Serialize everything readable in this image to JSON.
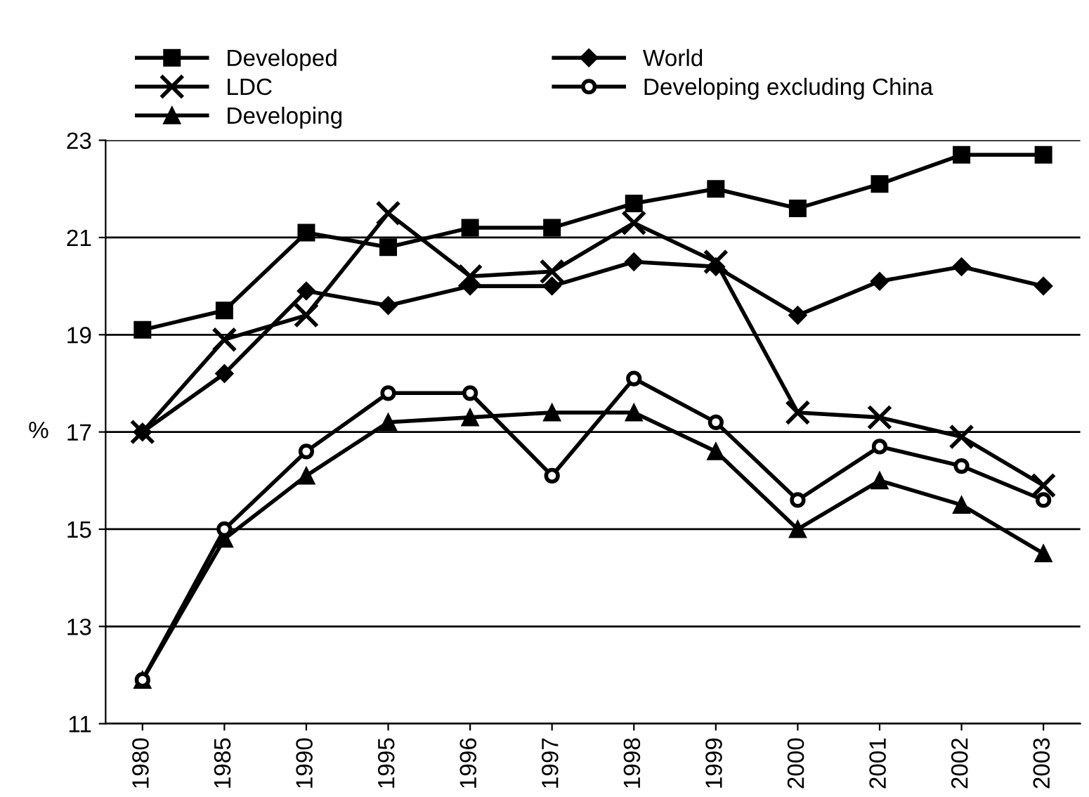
{
  "chart_data": {
    "type": "line",
    "ylabel": "%",
    "categories": [
      "1980",
      "1985",
      "1990",
      "1995",
      "1996",
      "1997",
      "1998",
      "1999",
      "2000",
      "2001",
      "2002",
      "2003"
    ],
    "series": [
      {
        "name": "Developed",
        "color": "#000000",
        "marker": "square",
        "values": [
          19.1,
          19.5,
          21.1,
          20.8,
          21.2,
          21.2,
          21.7,
          22.0,
          21.6,
          22.1,
          22.7,
          22.7
        ]
      },
      {
        "name": "LDC",
        "color": "#000000",
        "marker": "cross",
        "values": [
          17.0,
          18.9,
          19.4,
          21.5,
          20.2,
          20.3,
          21.3,
          20.5,
          17.4,
          17.3,
          16.9,
          15.9
        ]
      },
      {
        "name": "Developing",
        "color": "#000000",
        "marker": "triangle",
        "values": [
          11.9,
          14.8,
          16.1,
          17.2,
          17.3,
          17.4,
          17.4,
          16.6,
          15.0,
          16.0,
          15.5,
          14.5
        ]
      },
      {
        "name": "World",
        "color": "#000000",
        "marker": "diamond",
        "values": [
          17.0,
          18.2,
          19.9,
          19.6,
          20.0,
          20.0,
          20.5,
          20.4,
          19.4,
          20.1,
          20.4,
          20.0
        ]
      },
      {
        "name": "Developing excluding China",
        "color": "#000000",
        "marker": "circle",
        "values": [
          11.9,
          15.0,
          16.6,
          17.8,
          17.8,
          16.1,
          18.1,
          17.2,
          15.6,
          16.7,
          16.3,
          15.6
        ]
      }
    ],
    "ylim": [
      11,
      23
    ],
    "yticks": [
      11,
      13,
      15,
      17,
      19,
      21,
      23
    ],
    "grid": "y",
    "legend": "top",
    "line_style": "solid"
  }
}
